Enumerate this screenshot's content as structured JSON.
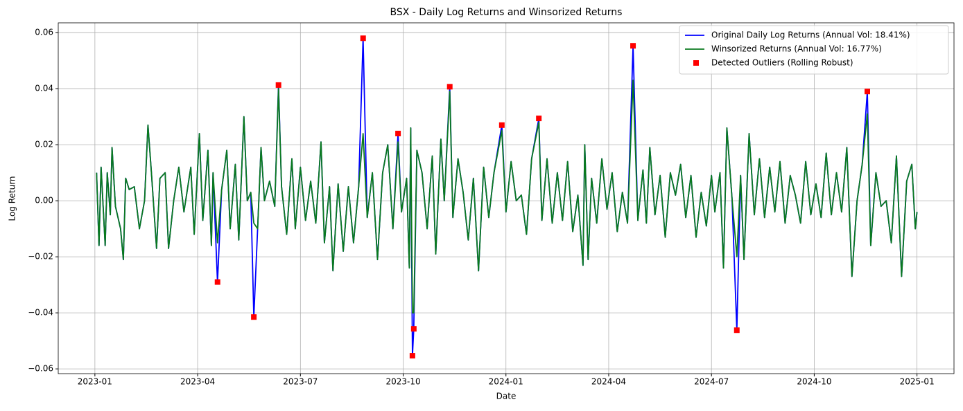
{
  "chart_data": {
    "type": "line",
    "title": "BSX - Daily Log Returns and Winsorized Returns",
    "xlabel": "Date",
    "ylabel": "Log Return",
    "xlim": [
      -1.07,
      25.08
    ],
    "ylim": [
      -0.0617,
      0.0635
    ],
    "xticks": [
      {
        "value": 0,
        "label": "2023-01"
      },
      {
        "value": 3,
        "label": "2023-04"
      },
      {
        "value": 6,
        "label": "2023-07"
      },
      {
        "value": 9,
        "label": "2023-10"
      },
      {
        "value": 12,
        "label": "2024-01"
      },
      {
        "value": 15,
        "label": "2024-04"
      },
      {
        "value": 18,
        "label": "2024-07"
      },
      {
        "value": 21,
        "label": "2024-10"
      },
      {
        "value": 24,
        "label": "2025-01"
      }
    ],
    "yticks": [
      {
        "value": -0.06,
        "label": "−0.06"
      },
      {
        "value": -0.04,
        "label": "−0.04"
      },
      {
        "value": -0.02,
        "label": "−0.02"
      },
      {
        "value": 0,
        "label": "0.00"
      },
      {
        "value": 0.02,
        "label": "0.02"
      },
      {
        "value": 0.04,
        "label": "0.04"
      },
      {
        "value": 0.06,
        "label": "0.06"
      }
    ],
    "grid": true,
    "legend": "upper right",
    "x": [
      0.05,
      0.12,
      0.18,
      0.3,
      0.36,
      0.45,
      0.5,
      0.6,
      0.75,
      0.83,
      0.9,
      1.0,
      1.15,
      1.3,
      1.45,
      1.55,
      1.65,
      1.8,
      1.9,
      2.05,
      2.15,
      2.3,
      2.45,
      2.6,
      2.8,
      2.9,
      3.05,
      3.15,
      3.3,
      3.4,
      3.45,
      3.58,
      3.7,
      3.85,
      3.95,
      4.1,
      4.2,
      4.35,
      4.45,
      4.55,
      4.64,
      4.75,
      4.85,
      4.95,
      5.1,
      5.25,
      5.36,
      5.45,
      5.6,
      5.75,
      5.85,
      6.0,
      6.15,
      6.3,
      6.45,
      6.6,
      6.7,
      6.85,
      6.95,
      7.1,
      7.25,
      7.4,
      7.55,
      7.7,
      7.83,
      7.95,
      8.1,
      8.25,
      8.4,
      8.55,
      8.7,
      8.85,
      8.95,
      9.1,
      9.18,
      9.22,
      9.27,
      9.31,
      9.4,
      9.55,
      9.7,
      9.85,
      9.95,
      10.1,
      10.2,
      10.36,
      10.45,
      10.6,
      10.75,
      10.9,
      11.05,
      11.2,
      11.35,
      11.5,
      11.65,
      11.88,
      12.0,
      12.15,
      12.3,
      12.45,
      12.6,
      12.75,
      12.96,
      13.05,
      13.2,
      13.35,
      13.5,
      13.65,
      13.8,
      13.95,
      14.1,
      14.25,
      14.3,
      14.4,
      14.5,
      14.65,
      14.8,
      14.95,
      15.1,
      15.25,
      15.4,
      15.55,
      15.71,
      15.85,
      16.0,
      16.1,
      16.2,
      16.35,
      16.5,
      16.65,
      16.8,
      16.95,
      17.1,
      17.25,
      17.4,
      17.55,
      17.7,
      17.85,
      18.0,
      18.1,
      18.25,
      18.35,
      18.45,
      18.6,
      18.74,
      18.85,
      18.95,
      19.1,
      19.25,
      19.4,
      19.55,
      19.7,
      19.85,
      20.0,
      20.15,
      20.3,
      20.45,
      20.6,
      20.75,
      20.9,
      21.05,
      21.2,
      21.35,
      21.5,
      21.65,
      21.8,
      21.95,
      22.1,
      22.25,
      22.4,
      22.55,
      22.65,
      22.8,
      22.95,
      23.1,
      23.25,
      23.4,
      23.55,
      23.7,
      23.85,
      23.95,
      24.0
    ],
    "series": [
      {
        "name": "Original Daily Log Returns (Annual Vol: 18.41%)",
        "type": "line",
        "color": "#0000ff",
        "values": [
          0.01,
          -0.016,
          0.012,
          -0.016,
          0.01,
          -0.005,
          0.019,
          -0.002,
          -0.01,
          -0.021,
          0.008,
          0.004,
          0.005,
          -0.01,
          0.0,
          0.027,
          0.01,
          -0.017,
          0.008,
          0.01,
          -0.017,
          0.0,
          0.012,
          -0.004,
          0.012,
          -0.012,
          0.024,
          -0.007,
          0.018,
          -0.016,
          0.01,
          -0.029,
          0.004,
          0.018,
          -0.01,
          0.013,
          -0.014,
          0.03,
          0.0,
          0.003,
          -0.0415,
          -0.01,
          0.019,
          0.0,
          0.007,
          -0.002,
          0.0413,
          0.005,
          -0.012,
          0.015,
          -0.01,
          0.012,
          -0.007,
          0.007,
          -0.008,
          0.021,
          -0.015,
          0.005,
          -0.025,
          0.006,
          -0.018,
          0.005,
          -0.015,
          0.005,
          0.058,
          -0.006,
          0.01,
          -0.021,
          0.01,
          0.02,
          -0.01,
          0.024,
          -0.004,
          0.008,
          -0.024,
          0.026,
          -0.0553,
          -0.0457,
          0.018,
          0.01,
          -0.01,
          0.016,
          -0.019,
          0.022,
          0.0,
          0.0407,
          -0.006,
          0.015,
          0.003,
          -0.014,
          0.008,
          -0.025,
          0.012,
          -0.006,
          0.01,
          0.027,
          -0.004,
          0.014,
          0.0,
          0.002,
          -0.012,
          0.015,
          0.0294,
          -0.007,
          0.015,
          -0.008,
          0.01,
          -0.007,
          0.014,
          -0.011,
          0.002,
          -0.023,
          0.02,
          -0.021,
          0.008,
          -0.008,
          0.015,
          -0.003,
          0.01,
          -0.011,
          0.003,
          -0.008,
          0.0553,
          -0.007,
          0.011,
          -0.008,
          0.019,
          -0.005,
          0.009,
          -0.013,
          0.01,
          0.002,
          0.013,
          -0.006,
          0.009,
          -0.013,
          0.003,
          -0.009,
          0.009,
          -0.004,
          0.01,
          -0.024,
          0.026,
          0.001,
          -0.0462,
          0.009,
          -0.021,
          0.024,
          -0.005,
          0.015,
          -0.006,
          0.012,
          -0.004,
          0.014,
          -0.008,
          0.009,
          0.002,
          -0.008,
          0.014,
          -0.005,
          0.006,
          -0.006,
          0.017,
          -0.005,
          0.01,
          -0.004,
          0.019,
          -0.027,
          0.0,
          0.013,
          0.039,
          -0.016,
          0.01,
          -0.002,
          0.0,
          -0.015,
          0.016,
          -0.027,
          0.007,
          0.013,
          -0.01,
          -0.004
        ]
      },
      {
        "name": "Winsorized Returns (Annual Vol: 16.77%)",
        "type": "line",
        "color": "#0a7a1e",
        "values": [
          0.01,
          -0.016,
          0.012,
          -0.016,
          0.01,
          -0.005,
          0.019,
          -0.002,
          -0.01,
          -0.021,
          0.008,
          0.004,
          0.005,
          -0.01,
          0.0,
          0.027,
          0.01,
          -0.017,
          0.008,
          0.01,
          -0.017,
          0.0,
          0.012,
          -0.004,
          0.012,
          -0.012,
          0.024,
          -0.007,
          0.018,
          -0.016,
          0.01,
          -0.015,
          0.004,
          0.018,
          -0.01,
          0.013,
          -0.014,
          0.03,
          0.0,
          0.003,
          -0.008,
          -0.01,
          0.019,
          0.0,
          0.007,
          -0.002,
          0.04,
          0.005,
          -0.012,
          0.015,
          -0.01,
          0.012,
          -0.007,
          0.007,
          -0.008,
          0.021,
          -0.015,
          0.005,
          -0.025,
          0.006,
          -0.018,
          0.005,
          -0.015,
          0.005,
          0.024,
          -0.006,
          0.01,
          -0.021,
          0.01,
          0.02,
          -0.01,
          0.021,
          -0.004,
          0.008,
          -0.024,
          0.026,
          -0.04,
          -0.04,
          0.018,
          0.01,
          -0.01,
          0.016,
          -0.019,
          0.022,
          0.0,
          0.039,
          -0.006,
          0.015,
          0.003,
          -0.014,
          0.008,
          -0.025,
          0.012,
          -0.006,
          0.01,
          0.025,
          -0.004,
          0.014,
          0.0,
          0.002,
          -0.012,
          0.015,
          0.028,
          -0.007,
          0.015,
          -0.008,
          0.01,
          -0.007,
          0.014,
          -0.011,
          0.002,
          -0.023,
          0.02,
          -0.021,
          0.008,
          -0.008,
          0.015,
          -0.003,
          0.01,
          -0.011,
          0.003,
          -0.008,
          0.043,
          -0.007,
          0.011,
          -0.008,
          0.019,
          -0.005,
          0.009,
          -0.013,
          0.01,
          0.002,
          0.013,
          -0.006,
          0.009,
          -0.013,
          0.003,
          -0.009,
          0.009,
          -0.004,
          0.01,
          -0.024,
          0.026,
          0.001,
          -0.02,
          0.009,
          -0.021,
          0.024,
          -0.005,
          0.015,
          -0.006,
          0.012,
          -0.004,
          0.014,
          -0.008,
          0.009,
          0.002,
          -0.008,
          0.014,
          -0.005,
          0.006,
          -0.006,
          0.017,
          -0.005,
          0.01,
          -0.004,
          0.019,
          -0.027,
          0.0,
          0.013,
          0.031,
          -0.016,
          0.01,
          -0.002,
          0.0,
          -0.015,
          0.016,
          -0.027,
          0.007,
          0.013,
          -0.01,
          -0.004
        ]
      },
      {
        "name": "Detected Outliers (Rolling Robust)",
        "type": "scatter",
        "color": "#ff0000",
        "x": [
          3.58,
          4.64,
          5.36,
          7.83,
          8.85,
          9.27,
          9.31,
          10.36,
          11.88,
          12.96,
          15.71,
          18.74,
          22.55
        ],
        "values": [
          -0.029,
          -0.0415,
          0.0413,
          0.058,
          0.024,
          -0.0553,
          -0.0457,
          0.0407,
          0.027,
          0.0294,
          0.0553,
          -0.0462,
          0.039
        ]
      }
    ]
  }
}
